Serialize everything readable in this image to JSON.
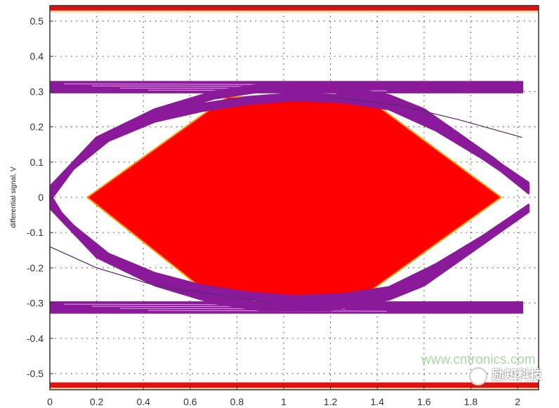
{
  "chart_data": {
    "type": "line",
    "title": "",
    "xlabel": "",
    "ylabel": "differential signal, V",
    "xlim": [
      0,
      2.1
    ],
    "ylim": [
      -0.55,
      0.55
    ],
    "grid": true,
    "grid_style": "dotted",
    "x_ticks": [
      0,
      0.2,
      0.4,
      0.6,
      0.8,
      1,
      1.2,
      1.4,
      1.6,
      1.8,
      2
    ],
    "x_tick_labels": [
      "0",
      "0.2",
      "0.4",
      "0.6",
      "0.8",
      "1",
      "1.2",
      "1.4",
      "1.6",
      "1.8",
      "2"
    ],
    "y_ticks": [
      0.5,
      0.4,
      0.3,
      0.2,
      0.1,
      0,
      -0.1,
      -0.2,
      -0.3,
      -0.4,
      -0.5
    ],
    "y_tick_labels": [
      "0.5",
      "0.4",
      "0.3",
      "0.2",
      "0.1",
      "0",
      "-0.1",
      "-0.2",
      "-0.3",
      "-0.4",
      "-0.5"
    ],
    "colors": {
      "eye_traces": "#8a1a9a",
      "mask": "#ff0000",
      "mask_edge": "#ff9900",
      "limit_bands": "#e01010"
    },
    "mask_polygon": [
      [
        0.16,
        0
      ],
      [
        0.76,
        0.285
      ],
      [
        1.35,
        0.285
      ],
      [
        1.93,
        0
      ],
      [
        1.33,
        -0.285
      ],
      [
        0.7,
        -0.285
      ]
    ],
    "limit_bands": [
      {
        "y_top": 0.545,
        "y_bottom": 0.53
      },
      {
        "y_top": -0.525,
        "y_bottom": -0.54
      }
    ],
    "rail_bands": [
      {
        "y_top": 0.33,
        "y_bottom": 0.295
      },
      {
        "y_top": -0.295,
        "y_bottom": -0.33
      }
    ],
    "eye_traces": [
      {
        "points": [
          [
            0,
            0
          ],
          [
            0.1,
            0.09
          ],
          [
            0.25,
            0.17
          ],
          [
            0.45,
            0.225
          ],
          [
            0.65,
            0.255
          ],
          [
            0.85,
            0.275
          ],
          [
            1.05,
            0.285
          ],
          [
            1.25,
            0.28
          ],
          [
            1.45,
            0.26
          ],
          [
            1.65,
            0.2
          ],
          [
            1.85,
            0.12
          ],
          [
            2.05,
            0.03
          ]
        ]
      },
      {
        "points": [
          [
            0,
            0
          ],
          [
            0.1,
            -0.09
          ],
          [
            0.25,
            -0.17
          ],
          [
            0.45,
            -0.225
          ],
          [
            0.65,
            -0.26
          ],
          [
            0.85,
            -0.28
          ],
          [
            1.05,
            -0.29
          ],
          [
            1.25,
            -0.285
          ],
          [
            1.45,
            -0.265
          ],
          [
            1.65,
            -0.2
          ],
          [
            1.85,
            -0.12
          ],
          [
            2.05,
            -0.03
          ]
        ]
      },
      {
        "points": [
          [
            0,
            0.02
          ],
          [
            0.2,
            0.16
          ],
          [
            0.45,
            0.24
          ],
          [
            0.7,
            0.29
          ],
          [
            0.9,
            0.31
          ],
          [
            1.2,
            0.31
          ],
          [
            1.45,
            0.28
          ],
          [
            1.6,
            0.24
          ],
          [
            1.75,
            0.17
          ],
          [
            1.9,
            0.1
          ],
          [
            2.05,
            0.02
          ]
        ]
      },
      {
        "points": [
          [
            0,
            -0.02
          ],
          [
            0.2,
            -0.16
          ],
          [
            0.45,
            -0.24
          ],
          [
            0.7,
            -0.29
          ],
          [
            0.9,
            -0.31
          ],
          [
            1.2,
            -0.31
          ],
          [
            1.45,
            -0.28
          ],
          [
            1.6,
            -0.24
          ],
          [
            1.75,
            -0.17
          ],
          [
            1.9,
            -0.1
          ],
          [
            2.05,
            -0.03
          ]
        ]
      },
      {
        "points": [
          [
            1.2,
            0.285
          ],
          [
            1.5,
            0.26
          ],
          [
            1.75,
            0.22
          ],
          [
            2.02,
            0.17
          ]
        ]
      },
      {
        "points": [
          [
            0,
            -0.14
          ],
          [
            0.2,
            -0.2
          ],
          [
            0.45,
            -0.25
          ],
          [
            0.75,
            -0.28
          ],
          [
            0.95,
            -0.3
          ]
        ]
      }
    ]
  },
  "watermark": {
    "brand": "励知科技",
    "url": "www.cntronics.com"
  }
}
